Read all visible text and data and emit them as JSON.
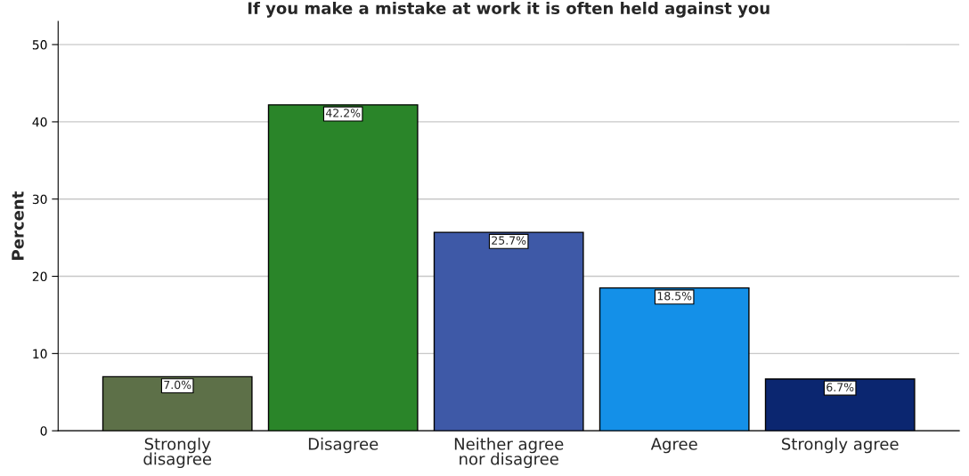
{
  "chart_data": {
    "type": "bar",
    "title": "If you make a mistake at work it is often held against you",
    "ylabel": "Percent",
    "categories": [
      "Strongly\ndisagree",
      "Disagree",
      "Neither agree\nnor disagree",
      "Agree",
      "Strongly agree"
    ],
    "values": [
      7.0,
      42.2,
      25.7,
      18.5,
      6.7
    ],
    "colors": [
      "#5d7048",
      "#2a8529",
      "#3e59a7",
      "#1490e8",
      "#0b2670"
    ],
    "value_labels": [
      "7.0%",
      "42.2%",
      "25.7%",
      "18.5%",
      "6.7%"
    ],
    "ylim": [
      0,
      53
    ],
    "yticks": [
      0,
      10,
      20,
      30,
      40,
      50
    ],
    "grid": "y"
  }
}
